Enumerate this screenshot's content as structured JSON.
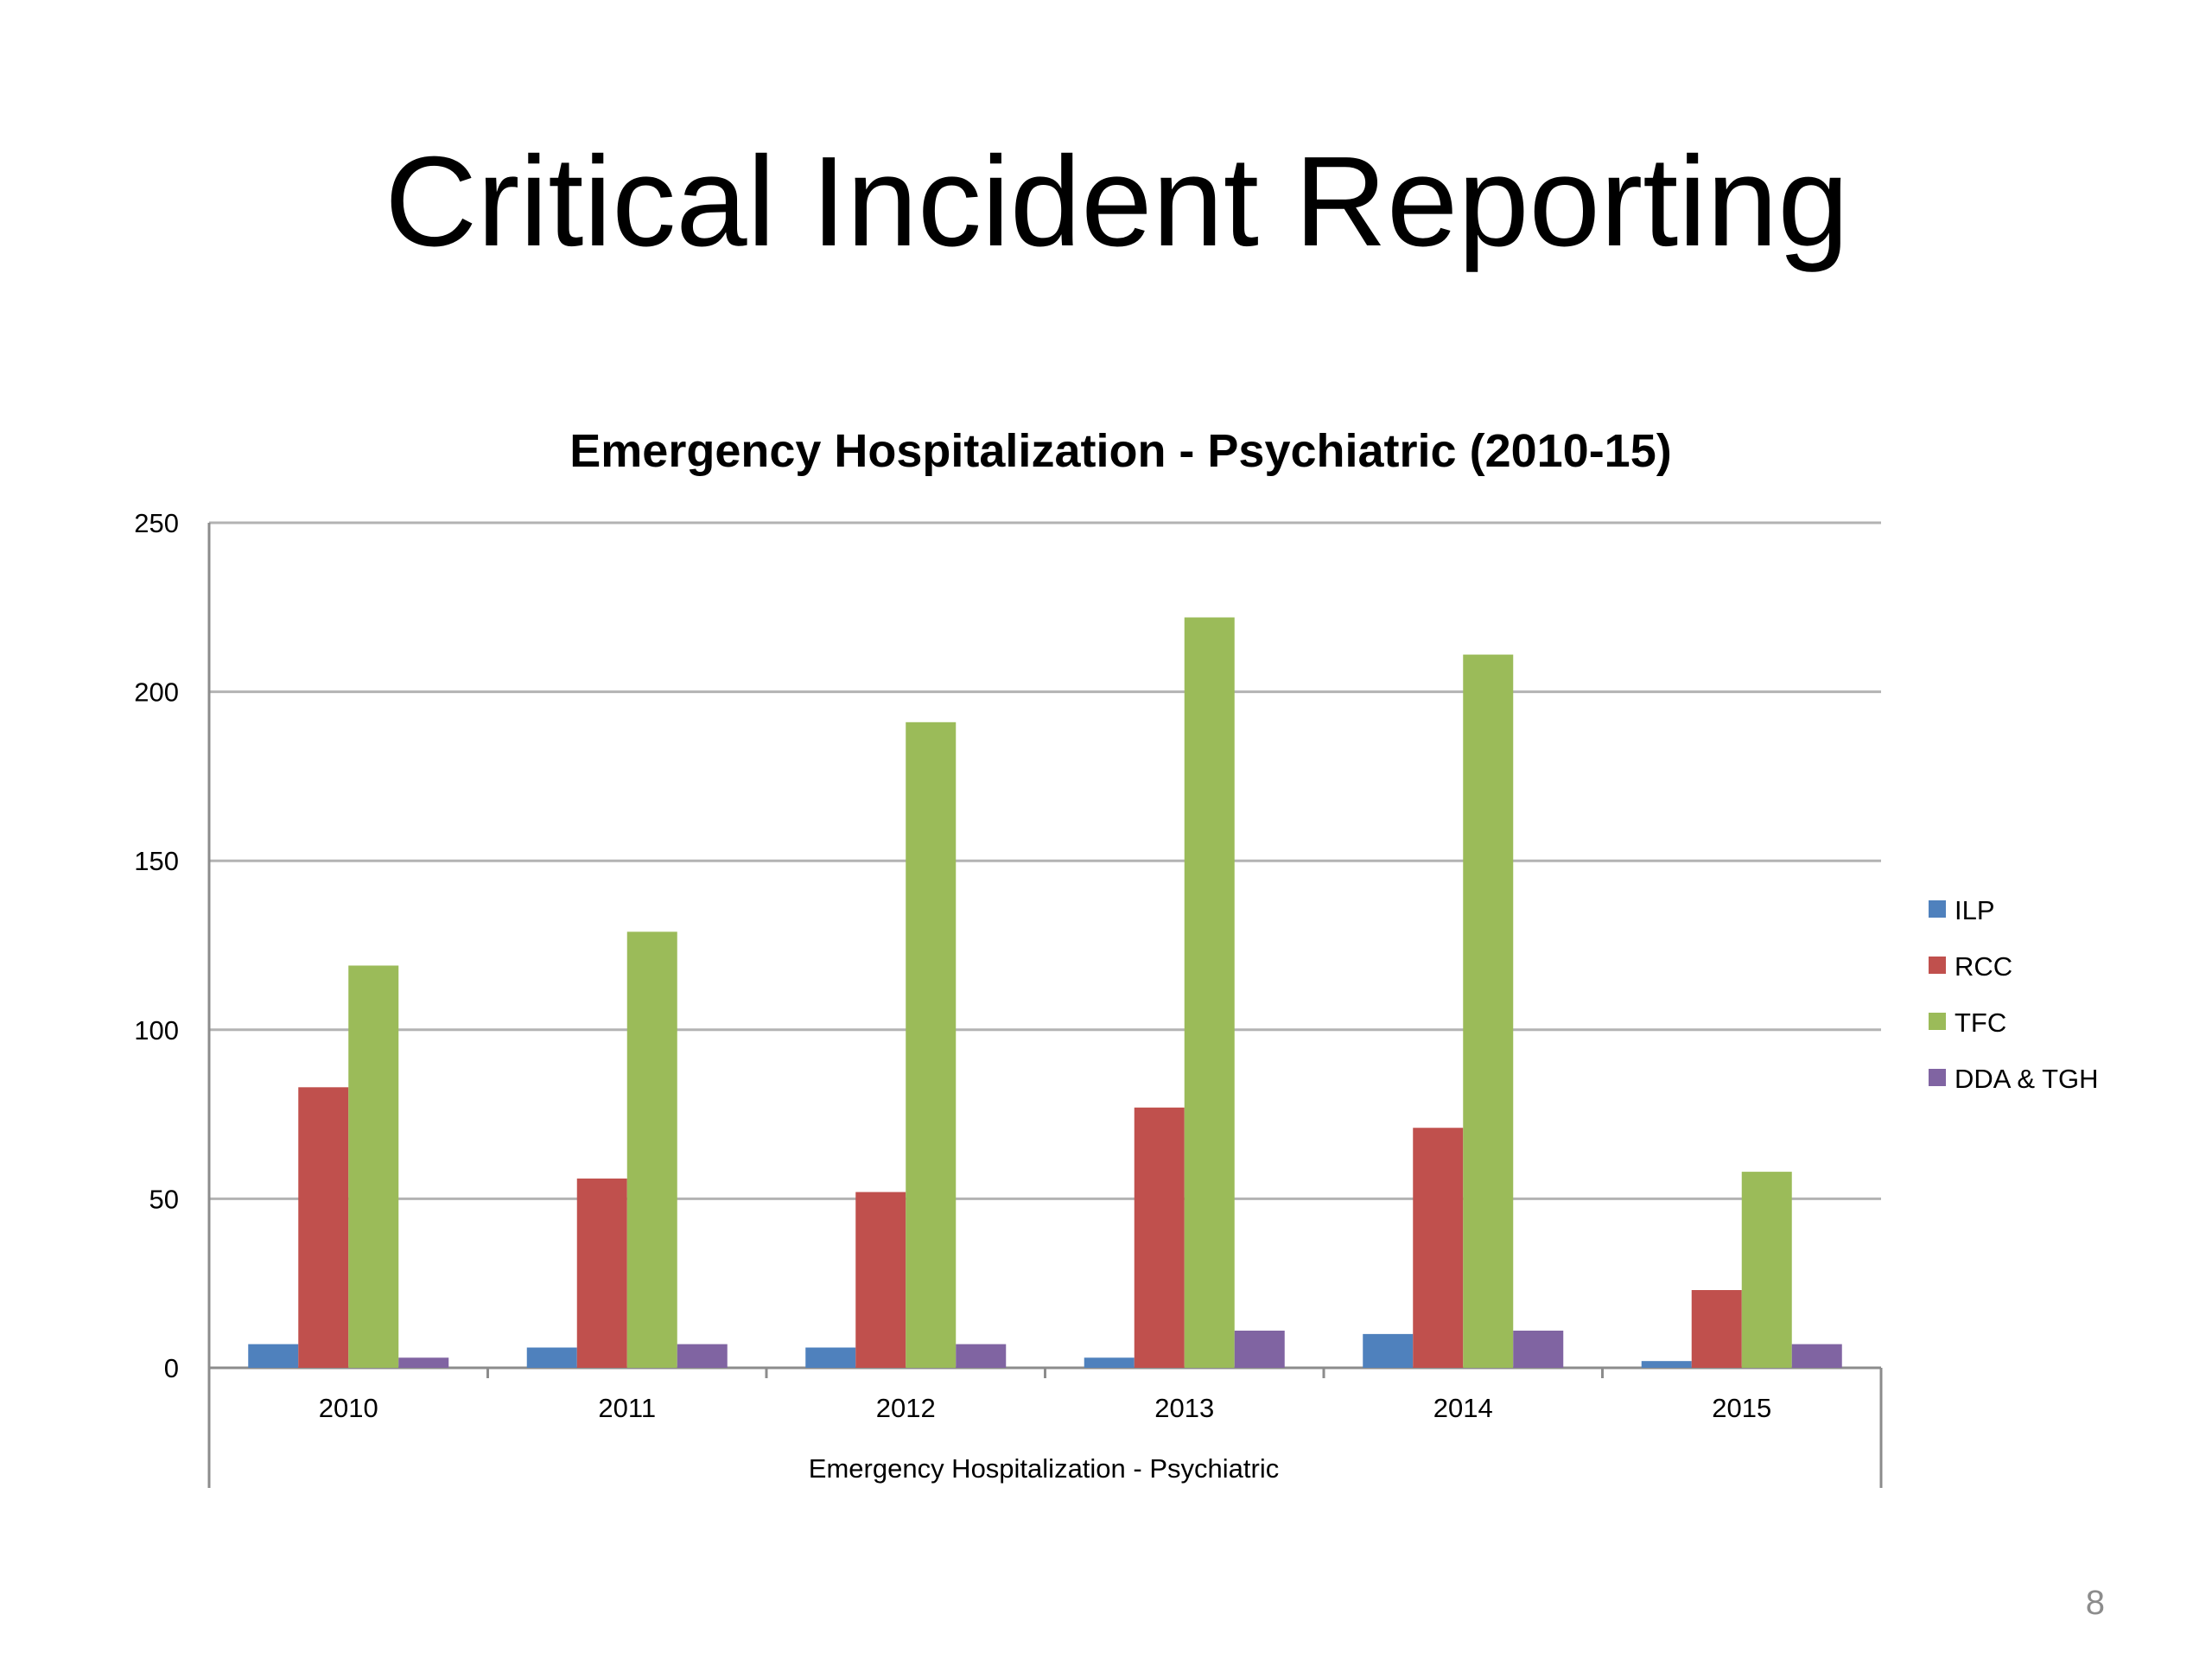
{
  "slide": {
    "title": "Critical Incident Reporting",
    "page_number": "8"
  },
  "chart_data": {
    "type": "bar",
    "title": "Emergency Hospitalization - Psychiatric (2010-15)",
    "xlabel": "Emergency Hospitalization - Psychiatric",
    "ylabel": "",
    "categories": [
      "2010",
      "2011",
      "2012",
      "2013",
      "2014",
      "2015"
    ],
    "ylim": [
      0,
      250
    ],
    "yticks": [
      0,
      50,
      100,
      150,
      200,
      250
    ],
    "grid": true,
    "legend_position": "right",
    "series": [
      {
        "name": "ILP",
        "color": "#4f81bd",
        "values": [
          7,
          6,
          6,
          3,
          10,
          2
        ]
      },
      {
        "name": "RCC",
        "color": "#c0504d",
        "values": [
          83,
          56,
          52,
          77,
          71,
          23
        ]
      },
      {
        "name": "TFC",
        "color": "#9bbb59",
        "values": [
          119,
          129,
          191,
          222,
          211,
          58
        ]
      },
      {
        "name": "DDA & TGH",
        "color": "#8064a2",
        "values": [
          3,
          7,
          7,
          11,
          11,
          7
        ]
      }
    ]
  }
}
